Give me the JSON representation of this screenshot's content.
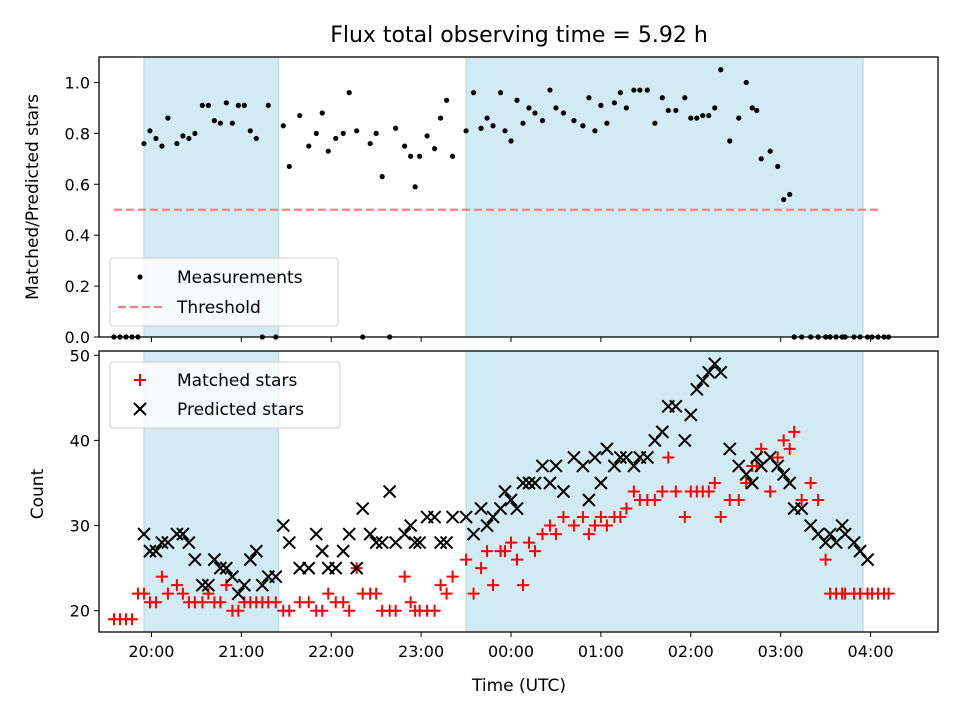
{
  "figure": {
    "title": "Flux total observing time = 5.92 h"
  },
  "colors": {
    "band": "#add8e6",
    "measurement": "#000000",
    "threshold": "#ff8080",
    "matched": "#ff0000",
    "predicted": "#000000"
  },
  "chart_data": [
    {
      "type": "scatter",
      "ylabel": "Matched/Predicted stars",
      "xlim": [
        "19:25",
        "04:45"
      ],
      "ylim": [
        0,
        1.1
      ],
      "yticks": [
        "0.0",
        "0.2",
        "0.4",
        "0.6",
        "0.8",
        "1.0"
      ],
      "shaded_intervals": [
        [
          "19:55",
          "21:25"
        ],
        [
          "23:30",
          "03:55"
        ]
      ],
      "threshold": 0.5,
      "threshold_span": [
        "19:35",
        "04:05"
      ],
      "legend": {
        "location": "lower left",
        "entries": [
          "Measurements",
          "Threshold"
        ]
      },
      "series": [
        {
          "name": "Measurements",
          "marker": "dot",
          "x": [
            "19:35",
            "19:39",
            "19:43",
            "19:47",
            "19:51",
            "19:55",
            "19:59",
            "20:03",
            "20:07",
            "20:11",
            "20:17",
            "20:21",
            "20:25",
            "20:29",
            "20:34",
            "20:38",
            "20:42",
            "20:46",
            "20:50",
            "20:54",
            "20:58",
            "21:02",
            "21:06",
            "21:10",
            "21:14",
            "21:18",
            "21:23",
            "21:28",
            "21:32",
            "21:39",
            "21:45",
            "21:50",
            "21:54",
            "21:58",
            "22:03",
            "22:08",
            "22:12",
            "22:17",
            "22:21",
            "22:26",
            "22:30",
            "22:34",
            "22:39",
            "22:43",
            "22:49",
            "22:53",
            "22:56",
            "22:59",
            "23:04",
            "23:09",
            "23:13",
            "23:17",
            "23:21",
            "23:30",
            "23:35",
            "23:40",
            "23:44",
            "23:48",
            "23:53",
            "23:56",
            "24:00",
            "24:04",
            "24:08",
            "24:12",
            "24:16",
            "24:21",
            "24:26",
            "24:30",
            "24:35",
            "24:42",
            "24:48",
            "24:52",
            "24:56",
            "25:00",
            "25:04",
            "25:09",
            "25:13",
            "25:17",
            "25:22",
            "25:26",
            "25:31",
            "25:36",
            "25:41",
            "25:45",
            "25:50",
            "25:56",
            "26:00",
            "26:04",
            "26:08",
            "26:12",
            "26:16",
            "26:20",
            "26:26",
            "26:32",
            "26:37",
            "26:41",
            "26:44",
            "26:47",
            "26:53",
            "26:58",
            "27:02",
            "27:06",
            "27:09",
            "27:14",
            "27:20",
            "27:25",
            "27:30",
            "27:33",
            "27:37",
            "27:41",
            "27:43",
            "27:49",
            "27:53",
            "27:58",
            "28:01",
            "28:05",
            "28:09",
            "28:12"
          ],
          "y": [
            0,
            0,
            0,
            0,
            0,
            0.76,
            0.81,
            0.78,
            0.75,
            0.86,
            0.76,
            0.79,
            0.78,
            0.8,
            0.91,
            0.91,
            0.85,
            0.84,
            0.92,
            0.84,
            0.91,
            0.91,
            0.81,
            0.78,
            0,
            0.91,
            0,
            0.83,
            0.67,
            0.87,
            0.75,
            0.8,
            0.88,
            0.73,
            0.78,
            0.8,
            0.96,
            0.81,
            0,
            0.76,
            0.8,
            0.63,
            0,
            0.82,
            0.75,
            0.71,
            0.59,
            0.71,
            0.79,
            0.74,
            0.86,
            0.93,
            0.71,
            0.81,
            0.96,
            0.82,
            0.86,
            0.83,
            0.96,
            0.81,
            0.77,
            0.93,
            0.84,
            0.9,
            0.88,
            0.85,
            0.97,
            0.9,
            0.88,
            0.85,
            0.83,
            0.94,
            0.81,
            0.91,
            0.84,
            0.92,
            0.96,
            0.9,
            0.97,
            0.97,
            0.97,
            0.84,
            0.94,
            0.89,
            0.89,
            0.94,
            0.86,
            0.86,
            0.87,
            0.87,
            0.9,
            1.05,
            0.77,
            0.86,
            1.0,
            0.9,
            0.89,
            0.7,
            0.73,
            0.67,
            0.54,
            0.56,
            0,
            0,
            0,
            0,
            0,
            0,
            0,
            0,
            0,
            0,
            0,
            0,
            0,
            0,
            0,
            0
          ]
        },
        {
          "name": "Threshold",
          "line": "dashed",
          "x": [
            "19:35",
            "04:05"
          ],
          "y": [
            0.5,
            0.5
          ]
        }
      ]
    },
    {
      "type": "scatter",
      "xlabel": "Time (UTC)",
      "ylabel": "Count",
      "xlim": [
        "19:25",
        "04:45"
      ],
      "ylim": [
        17.5,
        50.5
      ],
      "xticks": [
        "20:00",
        "21:00",
        "22:00",
        "23:00",
        "00:00",
        "01:00",
        "02:00",
        "03:00",
        "04:00"
      ],
      "yticks": [
        "20",
        "30",
        "40",
        "50"
      ],
      "shaded_intervals": [
        [
          "19:55",
          "21:25"
        ],
        [
          "23:30",
          "03:55"
        ]
      ],
      "legend": {
        "location": "upper left",
        "entries": [
          "Matched stars",
          "Predicted stars"
        ]
      },
      "series": [
        {
          "name": "Matched stars",
          "marker": "plus",
          "x": [
            "19:35",
            "19:39",
            "19:43",
            "19:47",
            "19:51",
            "19:55",
            "19:59",
            "20:03",
            "20:07",
            "20:11",
            "20:17",
            "20:21",
            "20:25",
            "20:29",
            "20:34",
            "20:38",
            "20:42",
            "20:46",
            "20:50",
            "20:54",
            "20:58",
            "21:02",
            "21:06",
            "21:10",
            "21:14",
            "21:18",
            "21:23",
            "21:28",
            "21:32",
            "21:39",
            "21:45",
            "21:50",
            "21:54",
            "21:58",
            "22:03",
            "22:08",
            "22:12",
            "22:17",
            "22:21",
            "22:26",
            "22:30",
            "22:34",
            "22:39",
            "22:43",
            "22:49",
            "22:53",
            "22:56",
            "22:59",
            "23:04",
            "23:09",
            "23:13",
            "23:17",
            "23:21",
            "23:30",
            "23:35",
            "23:40",
            "23:44",
            "23:48",
            "23:53",
            "23:56",
            "24:00",
            "24:04",
            "24:08",
            "24:12",
            "24:16",
            "24:21",
            "24:26",
            "24:30",
            "24:35",
            "24:42",
            "24:48",
            "24:52",
            "24:56",
            "25:00",
            "25:04",
            "25:09",
            "25:13",
            "25:17",
            "25:22",
            "25:26",
            "25:31",
            "25:36",
            "25:41",
            "25:45",
            "25:50",
            "25:56",
            "26:00",
            "26:04",
            "26:08",
            "26:12",
            "26:16",
            "26:20",
            "26:26",
            "26:32",
            "26:37",
            "26:41",
            "26:44",
            "26:47",
            "26:53",
            "26:58",
            "27:02",
            "27:06",
            "27:09",
            "27:14",
            "27:20",
            "27:25",
            "27:30",
            "27:33",
            "27:37",
            "27:41",
            "27:43",
            "27:49",
            "27:53",
            "27:58",
            "28:01",
            "28:05",
            "28:09",
            "28:12"
          ],
          "y": [
            19,
            19,
            19,
            19,
            22,
            22,
            21,
            21,
            24,
            22,
            23,
            22,
            21,
            21,
            21,
            22,
            21,
            21,
            23,
            20,
            20,
            21,
            21,
            21,
            21,
            21,
            21,
            20,
            20,
            21,
            21,
            20,
            20,
            22,
            21,
            21,
            20,
            25,
            22,
            22,
            22,
            20,
            20,
            20,
            24,
            21,
            20,
            20,
            20,
            20,
            23,
            22,
            24,
            26,
            22,
            25,
            27,
            23,
            27,
            27,
            28,
            26,
            23,
            28,
            27,
            29,
            30,
            29,
            31,
            30,
            31,
            29,
            30,
            31,
            30,
            31,
            31,
            32,
            34,
            33,
            33,
            33,
            34,
            38,
            34,
            31,
            34,
            34,
            34,
            34,
            35,
            31,
            33,
            33,
            35,
            37,
            37,
            39,
            34,
            38,
            40,
            39,
            41,
            33,
            35,
            33,
            26,
            22,
            22,
            22,
            22,
            22,
            22,
            22,
            22,
            22,
            22,
            22
          ]
        },
        {
          "name": "Predicted stars",
          "marker": "x",
          "x": [
            "19:55",
            "19:59",
            "20:03",
            "20:07",
            "20:11",
            "20:17",
            "20:21",
            "20:25",
            "20:29",
            "20:34",
            "20:38",
            "20:42",
            "20:46",
            "20:50",
            "20:54",
            "20:58",
            "21:02",
            "21:06",
            "21:10",
            "21:14",
            "21:18",
            "21:23",
            "21:28",
            "21:32",
            "21:39",
            "21:45",
            "21:50",
            "21:54",
            "21:58",
            "22:03",
            "22:08",
            "22:12",
            "22:17",
            "22:21",
            "22:26",
            "22:30",
            "22:34",
            "22:39",
            "22:43",
            "22:49",
            "22:53",
            "22:56",
            "22:59",
            "23:04",
            "23:09",
            "23:13",
            "23:17",
            "23:21",
            "23:30",
            "23:35",
            "23:40",
            "23:44",
            "23:48",
            "23:53",
            "23:56",
            "24:00",
            "24:04",
            "24:08",
            "24:12",
            "24:16",
            "24:21",
            "24:26",
            "24:30",
            "24:35",
            "24:42",
            "24:48",
            "24:52",
            "24:56",
            "25:00",
            "25:04",
            "25:09",
            "25:13",
            "25:17",
            "25:22",
            "25:26",
            "25:31",
            "25:36",
            "25:41",
            "25:45",
            "25:50",
            "25:56",
            "26:00",
            "26:04",
            "26:08",
            "26:12",
            "26:16",
            "26:20",
            "26:26",
            "26:32",
            "26:37",
            "26:41",
            "26:44",
            "26:47",
            "26:53",
            "26:58",
            "27:02",
            "27:06",
            "27:09",
            "27:14",
            "27:20",
            "27:25",
            "27:30",
            "27:33",
            "27:37",
            "27:41",
            "27:43",
            "27:49",
            "27:53",
            "27:58"
          ],
          "y": [
            29,
            27,
            27,
            28,
            28,
            29,
            29,
            28,
            26,
            23,
            23,
            26,
            25,
            25,
            24,
            22,
            23,
            26,
            27,
            23,
            24,
            24,
            30,
            28,
            25,
            25,
            29,
            27,
            25,
            25,
            27,
            29,
            25,
            32,
            29,
            28,
            28,
            34,
            28,
            29,
            30,
            28,
            28,
            31,
            31,
            28,
            28,
            31,
            31,
            29,
            32,
            30,
            31,
            32,
            34,
            33,
            32,
            35,
            35,
            35,
            37,
            35,
            37,
            34,
            38,
            37,
            33,
            38,
            35,
            39,
            37,
            38,
            38,
            37,
            38,
            38,
            40,
            41,
            44,
            44,
            40,
            43,
            46,
            47,
            48,
            49,
            48,
            39,
            37,
            36,
            35,
            38,
            37,
            38,
            37,
            36,
            35,
            32,
            32,
            30,
            29,
            28,
            29,
            28,
            30,
            29,
            28,
            27,
            26
          ]
        }
      ]
    }
  ]
}
